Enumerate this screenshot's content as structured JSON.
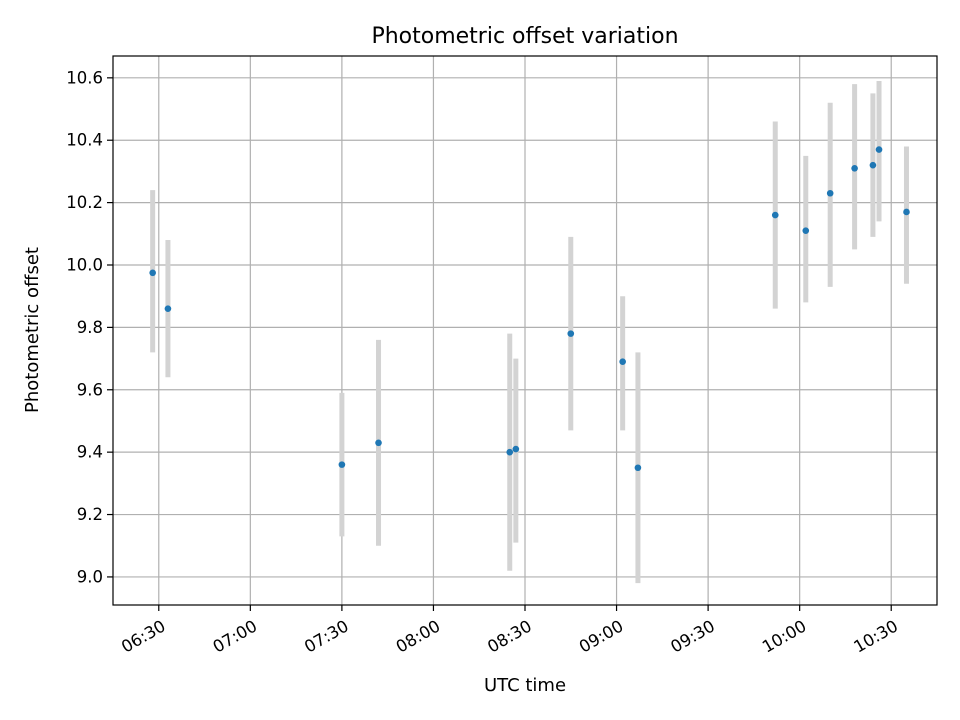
{
  "chart_data": {
    "type": "scatter",
    "title": "Photometric offset variation",
    "xlabel": "UTC time",
    "ylabel": "Photometric offset",
    "x_kind": "time",
    "xlim": [
      "06:15",
      "10:45"
    ],
    "ylim": [
      8.91,
      10.67
    ],
    "grid": true,
    "x_ticks": [
      "06:30",
      "07:00",
      "07:30",
      "08:00",
      "08:30",
      "09:00",
      "09:30",
      "10:00",
      "10:30"
    ],
    "y_ticks": [
      "9.0",
      "9.2",
      "9.4",
      "9.6",
      "9.8",
      "10.0",
      "10.2",
      "10.4",
      "10.6"
    ],
    "series": [
      {
        "color": "#1f77b4",
        "error_color": "#d3d3d3",
        "points": [
          {
            "x": "06:28",
            "y": 9.975,
            "err_low": 9.72,
            "err_high": 10.24
          },
          {
            "x": "06:33",
            "y": 9.86,
            "err_low": 9.64,
            "err_high": 10.08
          },
          {
            "x": "07:30",
            "y": 9.36,
            "err_low": 9.13,
            "err_high": 9.59
          },
          {
            "x": "07:42",
            "y": 9.43,
            "err_low": 9.1,
            "err_high": 9.76
          },
          {
            "x": "08:25",
            "y": 9.4,
            "err_low": 9.02,
            "err_high": 9.78
          },
          {
            "x": "08:27",
            "y": 9.41,
            "err_low": 9.11,
            "err_high": 9.7
          },
          {
            "x": "08:45",
            "y": 9.78,
            "err_low": 9.47,
            "err_high": 10.09
          },
          {
            "x": "09:02",
            "y": 9.69,
            "err_low": 9.47,
            "err_high": 9.9
          },
          {
            "x": "09:07",
            "y": 9.35,
            "err_low": 8.98,
            "err_high": 9.72
          },
          {
            "x": "09:52",
            "y": 10.16,
            "err_low": 9.86,
            "err_high": 10.46
          },
          {
            "x": "10:02",
            "y": 10.11,
            "err_low": 9.88,
            "err_high": 10.35
          },
          {
            "x": "10:10",
            "y": 10.23,
            "err_low": 9.93,
            "err_high": 10.52
          },
          {
            "x": "10:18",
            "y": 10.31,
            "err_low": 10.05,
            "err_high": 10.58
          },
          {
            "x": "10:24",
            "y": 10.32,
            "err_low": 10.09,
            "err_high": 10.55
          },
          {
            "x": "10:26",
            "y": 10.37,
            "err_low": 10.14,
            "err_high": 10.59
          },
          {
            "x": "10:35",
            "y": 10.17,
            "err_low": 9.94,
            "err_high": 10.38
          }
        ]
      }
    ]
  }
}
